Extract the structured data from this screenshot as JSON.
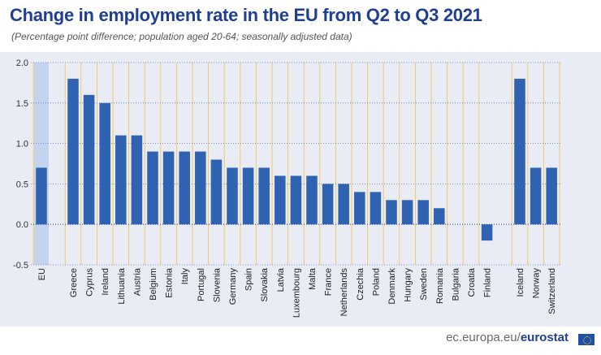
{
  "chart_data": {
    "type": "bar",
    "title": "Change in employment rate in the EU from Q2 to Q3 2021",
    "subtitle": "(Percentage point difference; population aged 20-64; seasonally adjusted data)",
    "xlabel": "",
    "ylabel": "",
    "ylim": [
      -0.5,
      2.0
    ],
    "yticks": [
      "2.0",
      "1.5",
      "1.0",
      "0.5",
      "0.0",
      "-0.5"
    ],
    "categories": [
      "EU",
      "Greece",
      "Cyprus",
      "Ireland",
      "Lithuania",
      "Austria",
      "Belgium",
      "Estonia",
      "Italy",
      "Portugal",
      "Slovenia",
      "Germany",
      "Spain",
      "Slovakia",
      "Latvia",
      "Luxembourg",
      "Malta",
      "France",
      "Netherlands",
      "Czechia",
      "Poland",
      "Denmark",
      "Hungary",
      "Sweden",
      "Romania",
      "Bulgaria",
      "Croatia",
      "Finland",
      "Iceland",
      "Norway",
      "Switzerland"
    ],
    "values": [
      0.7,
      1.8,
      1.6,
      1.5,
      1.1,
      1.1,
      0.9,
      0.9,
      0.9,
      0.9,
      0.8,
      0.7,
      0.7,
      0.7,
      0.6,
      0.6,
      0.6,
      0.5,
      0.5,
      0.4,
      0.4,
      0.3,
      0.3,
      0.3,
      0.2,
      null,
      null,
      -0.2,
      1.8,
      0.7,
      0.7
    ],
    "bar_color": "#2f62b0",
    "highlight_color": "#c4d4ef",
    "gridline_color": "#f6c244"
  },
  "footer": {
    "site": "ec.europa.eu/",
    "brand": "eurostat"
  }
}
